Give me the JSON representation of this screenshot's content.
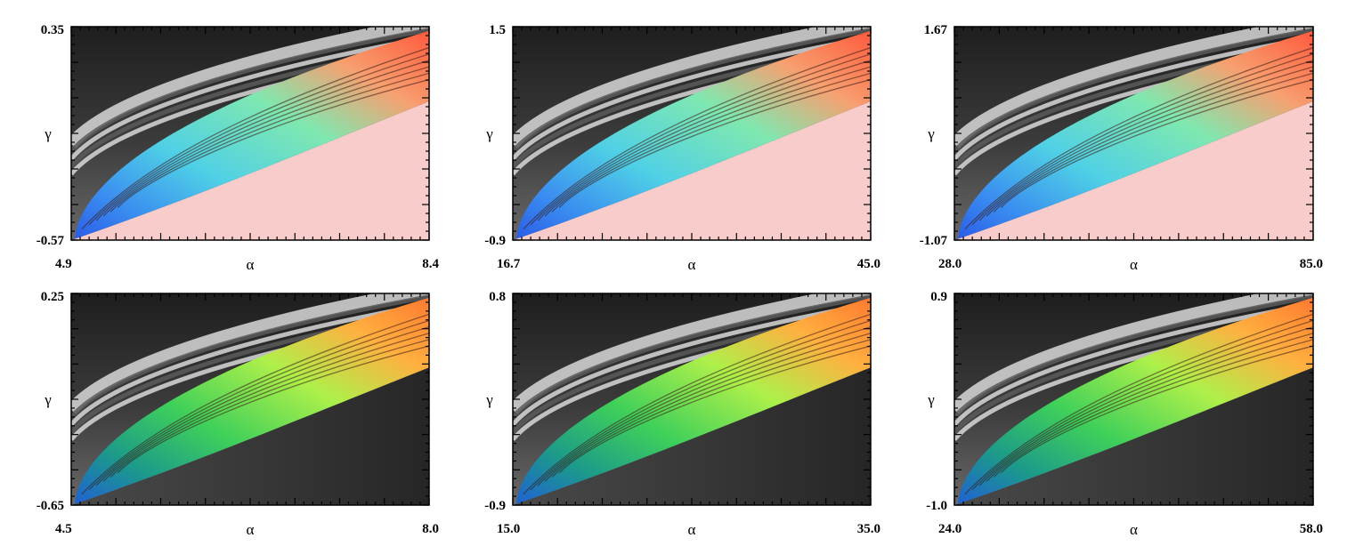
{
  "chart_data": [
    {
      "type": "heatmap",
      "xlabel": "α",
      "ylabel": "γ",
      "x_tick_labels": [
        "4.9",
        "8.4"
      ],
      "y_tick_labels": [
        "0.35",
        "-0.57"
      ],
      "xlim": [
        4.9,
        8.4
      ],
      "ylim": [
        -0.57,
        0.35
      ],
      "palette": "pink",
      "colors": {
        "background_region": "#f7cccb"
      }
    },
    {
      "type": "heatmap",
      "xlabel": "α",
      "ylabel": "γ",
      "x_tick_labels": [
        "16.7",
        "45.0"
      ],
      "y_tick_labels": [
        "1.5",
        "-0.9"
      ],
      "xlim": [
        16.7,
        45.0
      ],
      "ylim": [
        -0.9,
        1.5
      ],
      "palette": "pink",
      "colors": {
        "background_region": "#f7cccb"
      }
    },
    {
      "type": "heatmap",
      "xlabel": "α",
      "ylabel": "γ",
      "x_tick_labels": [
        "28.0",
        "85.0"
      ],
      "y_tick_labels": [
        "1.67",
        "-1.07"
      ],
      "xlim": [
        28.0,
        85.0
      ],
      "ylim": [
        -1.07,
        1.67
      ],
      "palette": "pink",
      "colors": {
        "background_region": "#f7cccb"
      }
    },
    {
      "type": "heatmap",
      "xlabel": "α",
      "ylabel": "γ",
      "x_tick_labels": [
        "4.5",
        "8.0"
      ],
      "y_tick_labels": [
        "0.25",
        "-0.65"
      ],
      "xlim": [
        4.5,
        8.0
      ],
      "ylim": [
        -0.65,
        0.25
      ],
      "palette": "dark",
      "colors": {
        "background_region": "#3d3d3d"
      }
    },
    {
      "type": "heatmap",
      "xlabel": "α",
      "ylabel": "γ",
      "x_tick_labels": [
        "15.0",
        "35.0"
      ],
      "y_tick_labels": [
        "0.8",
        "-0.9"
      ],
      "xlim": [
        15.0,
        35.0
      ],
      "ylim": [
        -0.9,
        0.8
      ],
      "palette": "dark",
      "colors": {
        "background_region": "#353535"
      }
    },
    {
      "type": "heatmap",
      "xlabel": "α",
      "ylabel": "γ",
      "x_tick_labels": [
        "24.0",
        "58.0"
      ],
      "y_tick_labels": [
        "0.9",
        "-1.0"
      ],
      "xlim": [
        24.0,
        58.0
      ],
      "ylim": [
        -1.0,
        0.9
      ],
      "palette": "dark",
      "colors": {
        "background_region": "#2e2e2e"
      }
    }
  ]
}
